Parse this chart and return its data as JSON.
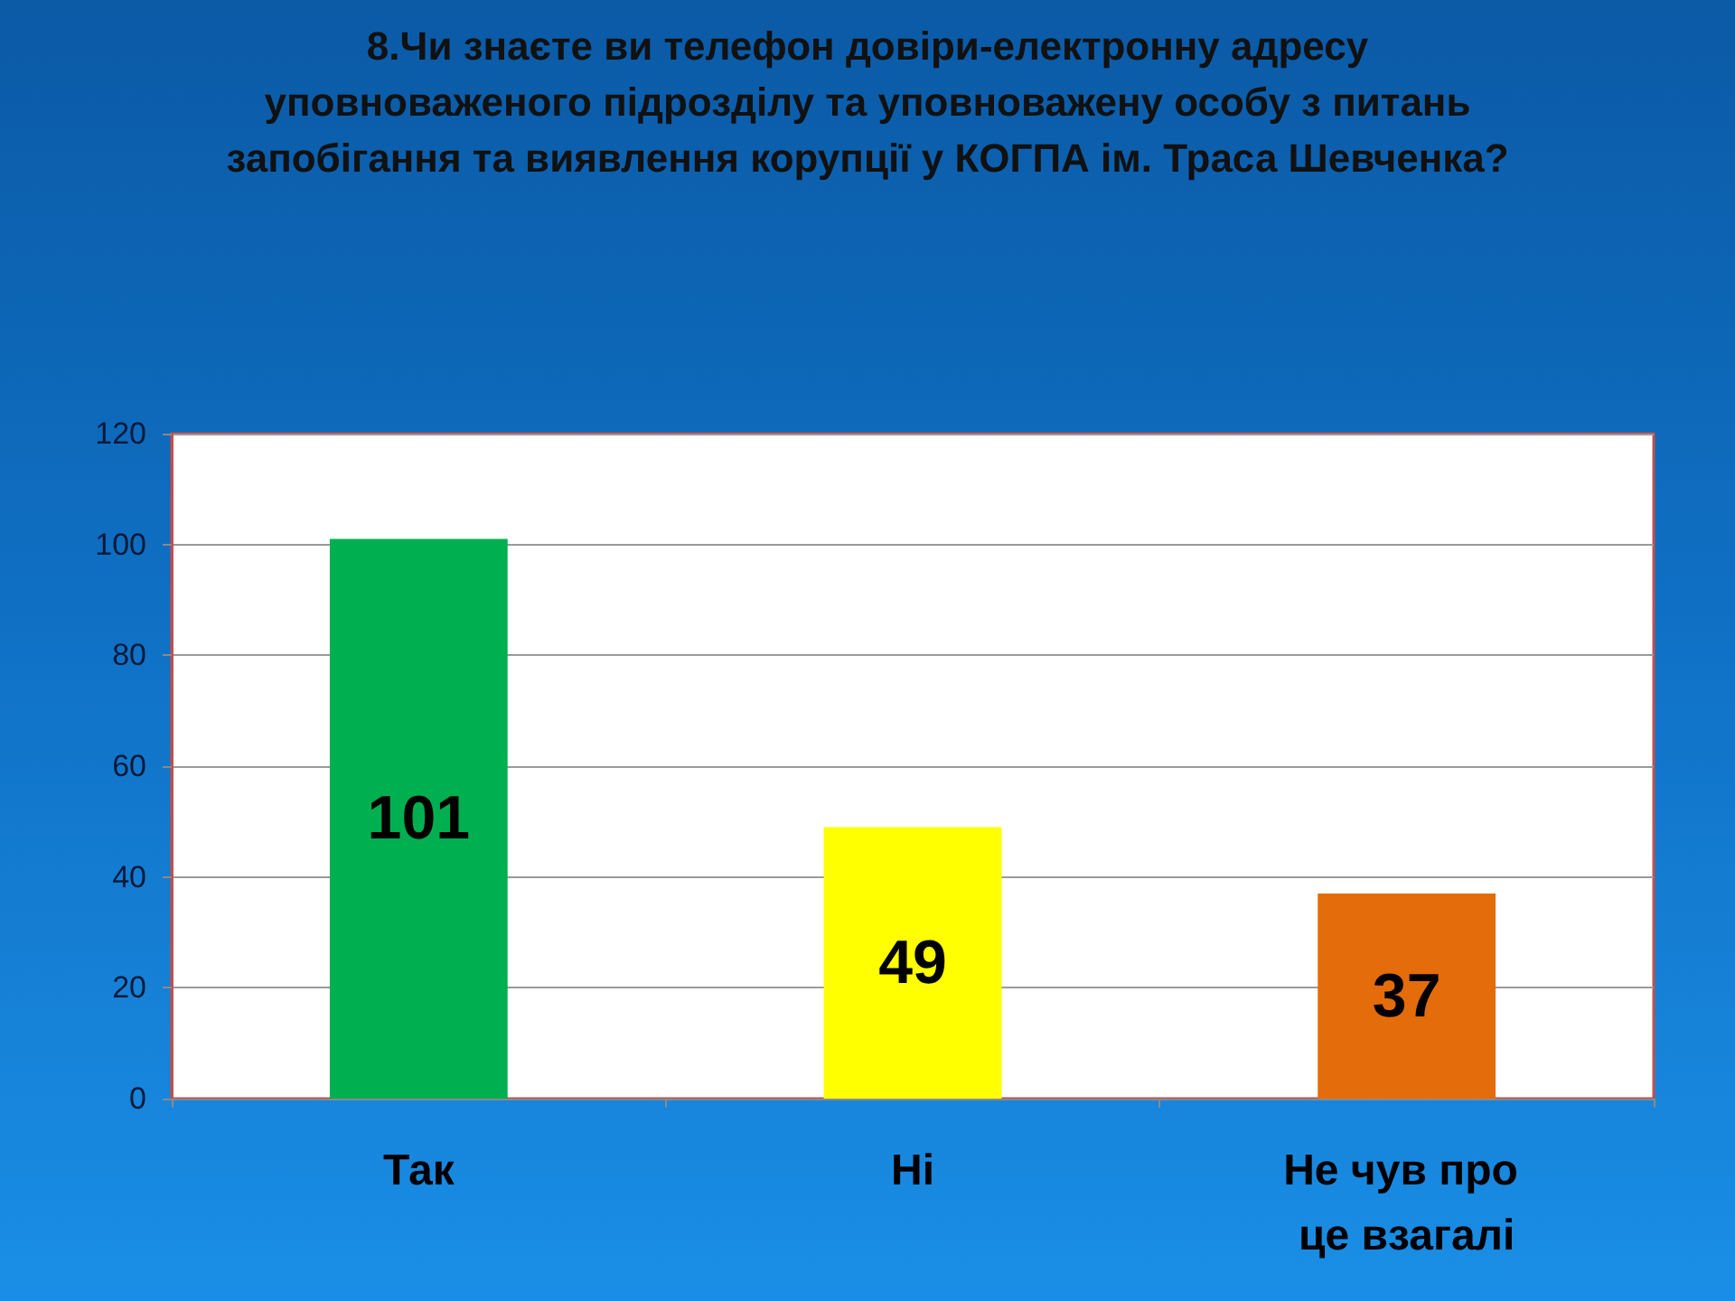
{
  "chart_data": {
    "type": "bar",
    "title": "8.Чи знаєте ви телефон довіри-електронну адресу уповноваженого підрозділу та уповноважену особу з питань запобігання та виявлення корупції у КОГПА ім. Траса Шевченка?",
    "categories": [
      "Так",
      "Ні",
      "Не чув про це взагалі"
    ],
    "values": [
      101,
      49,
      37
    ],
    "colors": [
      "#00b050",
      "#ffff00",
      "#e46c0a"
    ],
    "ylim": [
      0,
      120
    ],
    "yticks": [
      0,
      20,
      40,
      60,
      80,
      100,
      120
    ],
    "grid": "y",
    "data_labels": true
  }
}
